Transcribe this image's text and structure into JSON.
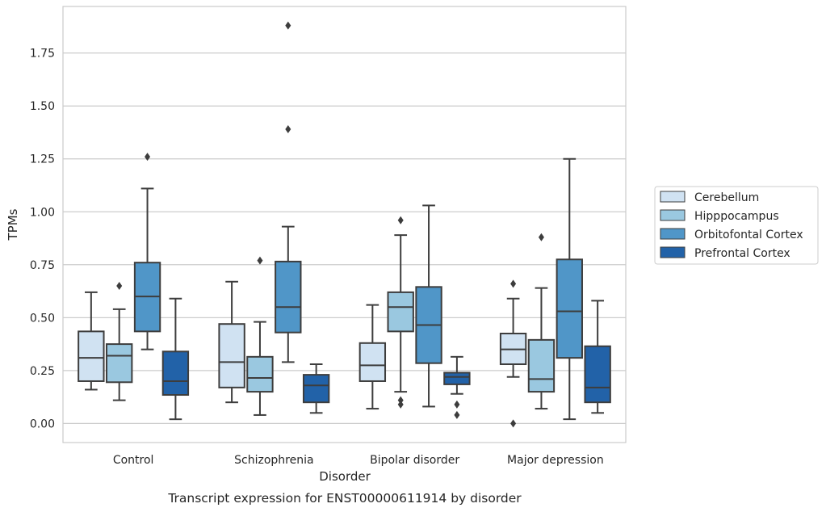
{
  "chart_data": {
    "type": "box",
    "xlabel": "Disorder",
    "ylabel": "TPMs",
    "caption": "Transcript expression for ENST00000611914 by disorder",
    "ylim": [
      -0.09,
      1.97
    ],
    "yticks": [
      0.0,
      0.25,
      0.5,
      0.75,
      1.0,
      1.25,
      1.5,
      1.75
    ],
    "ytick_labels": [
      "0.00",
      "0.25",
      "0.50",
      "0.75",
      "1.00",
      "1.25",
      "1.50",
      "1.75"
    ],
    "grid": true,
    "legend_position": "right",
    "categories": [
      "Control",
      "Schizophrenia",
      "Bipolar disorder",
      "Major depression"
    ],
    "series": [
      {
        "name": "Cerebellum",
        "color": "#d0e2f2",
        "boxes": [
          {
            "whislo": 0.16,
            "q1": 0.2,
            "med": 0.31,
            "q3": 0.435,
            "whishi": 0.62,
            "fliers": []
          },
          {
            "whislo": 0.1,
            "q1": 0.17,
            "med": 0.29,
            "q3": 0.47,
            "whishi": 0.67,
            "fliers": []
          },
          {
            "whislo": 0.07,
            "q1": 0.2,
            "med": 0.275,
            "q3": 0.38,
            "whishi": 0.56,
            "fliers": []
          },
          {
            "whislo": 0.22,
            "q1": 0.28,
            "med": 0.35,
            "q3": 0.425,
            "whishi": 0.59,
            "fliers": [
              0.66,
              0.0
            ]
          }
        ]
      },
      {
        "name": "Hipppocampus",
        "color": "#9ac8e0",
        "boxes": [
          {
            "whislo": 0.11,
            "q1": 0.195,
            "med": 0.32,
            "q3": 0.375,
            "whishi": 0.54,
            "fliers": [
              0.65
            ]
          },
          {
            "whislo": 0.04,
            "q1": 0.15,
            "med": 0.215,
            "q3": 0.315,
            "whishi": 0.48,
            "fliers": [
              0.77
            ]
          },
          {
            "whislo": 0.15,
            "q1": 0.435,
            "med": 0.55,
            "q3": 0.62,
            "whishi": 0.89,
            "fliers": [
              0.96,
              0.11,
              0.09
            ]
          },
          {
            "whislo": 0.07,
            "q1": 0.15,
            "med": 0.21,
            "q3": 0.395,
            "whishi": 0.64,
            "fliers": [
              0.88
            ]
          }
        ]
      },
      {
        "name": "Orbitofontal Cortex",
        "color": "#5096c8",
        "boxes": [
          {
            "whislo": 0.35,
            "q1": 0.435,
            "med": 0.6,
            "q3": 0.76,
            "whishi": 1.11,
            "fliers": [
              1.26
            ]
          },
          {
            "whislo": 0.29,
            "q1": 0.43,
            "med": 0.55,
            "q3": 0.765,
            "whishi": 0.93,
            "fliers": [
              1.88,
              1.39
            ]
          },
          {
            "whislo": 0.08,
            "q1": 0.285,
            "med": 0.465,
            "q3": 0.645,
            "whishi": 1.03,
            "fliers": []
          },
          {
            "whislo": 0.02,
            "q1": 0.31,
            "med": 0.53,
            "q3": 0.775,
            "whishi": 1.25,
            "fliers": []
          }
        ]
      },
      {
        "name": "Prefrontal Cortex",
        "color": "#2262a8",
        "boxes": [
          {
            "whislo": 0.02,
            "q1": 0.135,
            "med": 0.2,
            "q3": 0.34,
            "whishi": 0.59,
            "fliers": []
          },
          {
            "whislo": 0.05,
            "q1": 0.1,
            "med": 0.18,
            "q3": 0.23,
            "whishi": 0.28,
            "fliers": []
          },
          {
            "whislo": 0.14,
            "q1": 0.185,
            "med": 0.22,
            "q3": 0.24,
            "whishi": 0.315,
            "fliers": [
              0.09,
              0.04
            ]
          },
          {
            "whislo": 0.05,
            "q1": 0.1,
            "med": 0.17,
            "q3": 0.365,
            "whishi": 0.58,
            "fliers": []
          }
        ]
      }
    ]
  }
}
